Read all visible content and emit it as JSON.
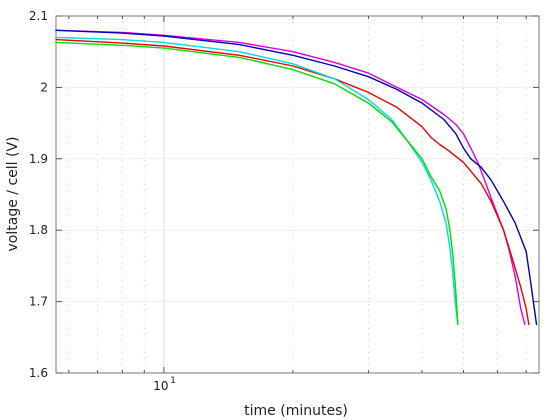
{
  "chart_data": {
    "type": "line",
    "title": "",
    "xlabel": "time (minutes)",
    "ylabel": "voltage / cell (V)",
    "x_scale": "log",
    "xlim": [
      5.6,
      75
    ],
    "ylim": [
      1.6,
      2.1
    ],
    "grid": true,
    "legend": "none",
    "y_ticks": [
      "1.6",
      "1.7",
      "1.8",
      "1.9",
      "2",
      "2.1"
    ],
    "x_ticks": [
      {
        "value": 10,
        "label": "10",
        "superscript": "1"
      }
    ],
    "series": [
      {
        "color": "#dd00dd",
        "x": [
          5.6,
          8,
          10,
          15,
          20,
          25,
          30,
          35,
          40,
          45,
          48,
          50,
          52,
          54,
          56,
          58,
          60,
          62,
          64,
          66,
          68,
          69.5
        ],
        "y": [
          2.08,
          2.077,
          2.073,
          2.063,
          2.05,
          2.035,
          2.02,
          2.0,
          1.983,
          1.962,
          1.948,
          1.935,
          1.915,
          1.895,
          1.87,
          1.845,
          1.822,
          1.8,
          1.77,
          1.735,
          1.69,
          1.668
        ]
      },
      {
        "color": "#0000bb",
        "x": [
          5.6,
          8,
          10,
          15,
          20,
          25,
          30,
          35,
          40,
          45,
          48,
          50,
          52,
          55,
          58,
          62,
          66,
          70,
          72,
          74
        ],
        "y": [
          2.08,
          2.076,
          2.072,
          2.06,
          2.045,
          2.03,
          2.015,
          1.997,
          1.978,
          1.955,
          1.935,
          1.915,
          1.9,
          1.888,
          1.87,
          1.84,
          1.81,
          1.77,
          1.72,
          1.668
        ]
      },
      {
        "color": "#ee0000",
        "x": [
          5.6,
          8,
          10,
          15,
          20,
          25,
          30,
          35,
          40,
          42,
          44,
          46,
          50,
          55,
          58,
          62,
          65,
          68,
          70,
          71
        ],
        "y": [
          2.067,
          2.062,
          2.058,
          2.045,
          2.03,
          2.012,
          1.993,
          1.972,
          1.945,
          1.93,
          1.92,
          1.912,
          1.895,
          1.865,
          1.84,
          1.8,
          1.76,
          1.72,
          1.69,
          1.668
        ]
      },
      {
        "color": "#00dddd",
        "x": [
          5.6,
          8,
          10,
          15,
          20,
          25,
          30,
          34,
          37,
          40,
          42,
          44,
          45.5,
          46.5,
          47.2,
          47.8,
          48.5
        ],
        "y": [
          2.07,
          2.067,
          2.063,
          2.05,
          2.033,
          2.012,
          1.983,
          1.955,
          1.925,
          1.895,
          1.87,
          1.84,
          1.81,
          1.775,
          1.74,
          1.7,
          1.668
        ]
      },
      {
        "color": "#00dd00",
        "x": [
          5.6,
          8,
          10,
          15,
          20,
          25,
          30,
          34,
          37,
          40,
          42,
          44,
          45.5,
          46.5,
          47.3,
          47.9,
          48.5
        ],
        "y": [
          2.063,
          2.059,
          2.055,
          2.042,
          2.025,
          2.005,
          1.978,
          1.952,
          1.925,
          1.9,
          1.875,
          1.855,
          1.83,
          1.8,
          1.76,
          1.72,
          1.668
        ]
      }
    ]
  }
}
